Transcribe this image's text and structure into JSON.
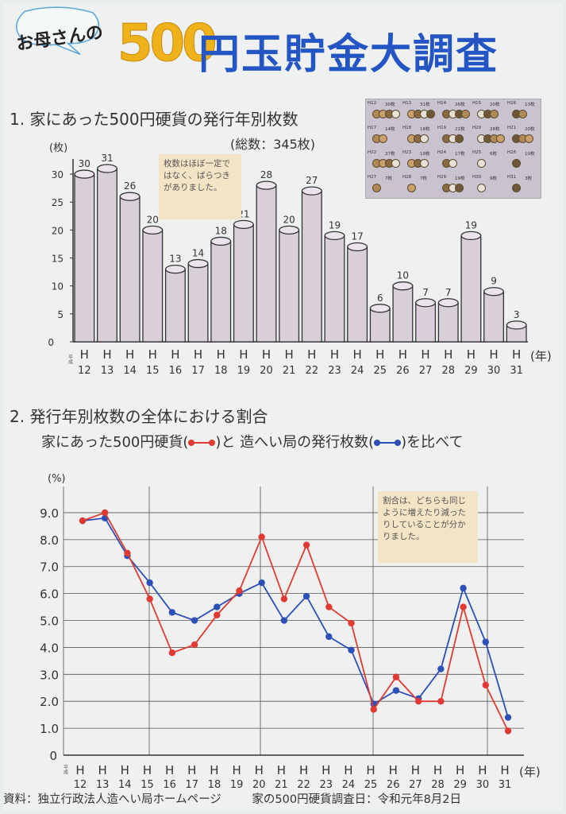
{
  "header": {
    "bubble": "お母さんの",
    "title_number": "500",
    "title_text": "円玉貯金大調査"
  },
  "section1": {
    "heading": "1. 家にあった500円硬貨の発行年別枚数",
    "total": "(総数：345枚)",
    "note": "枚数はほぼ一定ではなく、ばらつきがありました。"
  },
  "section2": {
    "heading": "2. 発行年別枚数の全体における割合",
    "subheading_1": "家にあった500円硬貨(",
    "subheading_2": ")と 造へい局の発行枚数(",
    "subheading_3": ")を比べて",
    "note": "割合は、どちらも同じように増えたり減ったりしていることが分かりました。"
  },
  "footer": {
    "source": "資料：独立行政法人造へい局ホームページ",
    "survey": "家の500円硬貨調査日：令和元年8月2日"
  },
  "photo": {
    "labels": [
      "H12",
      "30枚",
      "H13",
      "31枚",
      "H14",
      "26枚",
      "H15",
      "20枚",
      "H16",
      "13枚",
      "H17",
      "14枚",
      "H18",
      "18枚",
      "H19",
      "21枚",
      "H20",
      "28枚",
      "H21",
      "20枚",
      "H22",
      "27枚",
      "H23",
      "19枚",
      "H24",
      "17枚",
      "H25",
      "6枚",
      "H26",
      "10枚",
      "H27",
      "7枚",
      "H28",
      "7枚",
      "H29",
      "19枚",
      "H30",
      "9枚",
      "H31",
      "3枚"
    ]
  },
  "colors": {
    "bar_fill": "#d9cfd9",
    "bar_top": "#ece4ec",
    "red_line": "#e03a32",
    "blue_line": "#2d4fb8",
    "title_blue": "#2455c4",
    "title_orange": "#f0b21a"
  },
  "chart_data": [
    {
      "type": "bar",
      "ylabel": "(枚)",
      "xlabel": "(年)",
      "era_label": "平成",
      "categories": [
        "H\n12",
        "H\n13",
        "H\n14",
        "H\n15",
        "H\n16",
        "H\n17",
        "H\n18",
        "H\n19",
        "H\n20",
        "H\n21",
        "H\n22",
        "H\n23",
        "H\n24",
        "H\n25",
        "H\n26",
        "H\n27",
        "H\n28",
        "H\n29",
        "H\n30",
        "H\n31"
      ],
      "category_years": [
        "12",
        "13",
        "14",
        "15",
        "16",
        "17",
        "18",
        "19",
        "20",
        "21",
        "22",
        "23",
        "24",
        "25",
        "26",
        "27",
        "28",
        "29",
        "30",
        "31"
      ],
      "values": [
        30,
        31,
        26,
        20,
        13,
        14,
        18,
        21,
        28,
        20,
        27,
        19,
        17,
        6,
        10,
        7,
        7,
        19,
        9,
        3
      ],
      "yticks": [
        "0",
        "5",
        "10",
        "15",
        "20",
        "25",
        "30"
      ],
      "ylim": [
        0,
        32
      ]
    },
    {
      "type": "line",
      "ylabel": "(%)",
      "xlabel": "(年)",
      "era_label": "平成",
      "category_years": [
        "12",
        "13",
        "14",
        "15",
        "16",
        "17",
        "18",
        "19",
        "20",
        "21",
        "22",
        "23",
        "24",
        "25",
        "26",
        "27",
        "28",
        "29",
        "30",
        "31"
      ],
      "yticks": [
        "0",
        "1.0",
        "2.0",
        "3.0",
        "4.0",
        "5.0",
        "6.0",
        "7.0",
        "8.0",
        "9.0"
      ],
      "ylim": [
        0,
        9.5
      ],
      "series": [
        {
          "color": "red",
          "values": [
            8.7,
            9.0,
            7.5,
            5.8,
            3.8,
            4.1,
            5.2,
            6.1,
            8.1,
            5.8,
            7.8,
            5.5,
            4.9,
            1.7,
            2.9,
            2.0,
            2.0,
            5.5,
            2.6,
            0.9
          ]
        },
        {
          "color": "blue",
          "values": [
            8.7,
            8.8,
            7.4,
            6.4,
            5.3,
            5.0,
            5.5,
            6.0,
            6.4,
            5.0,
            5.9,
            4.4,
            3.9,
            1.9,
            2.4,
            2.1,
            3.2,
            6.2,
            4.2,
            1.4
          ]
        }
      ]
    }
  ]
}
